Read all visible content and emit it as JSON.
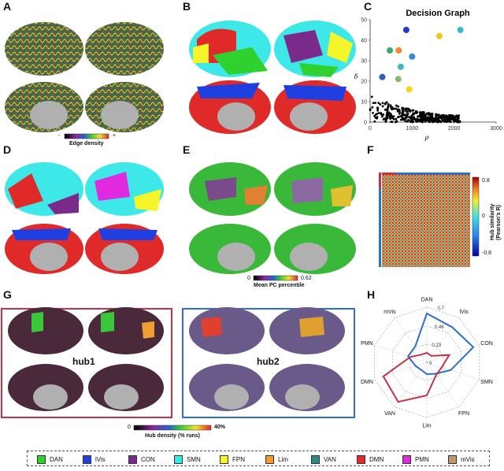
{
  "panels": {
    "A": "A",
    "B": "B",
    "C": "C",
    "D": "D",
    "E": "E",
    "F": "F",
    "G": "G",
    "H": "H"
  },
  "panelA": {
    "colorbar_label": "Edge density",
    "min_label": "-",
    "max_label": "+"
  },
  "panelE": {
    "colorbar_label": "Mean PC percentile",
    "min_label": "0",
    "max_label": "0.62"
  },
  "panelF": {
    "colorbar_label_1": "Hub similarity",
    "colorbar_label_2": "(Pearson's R)",
    "max_label": "0.8",
    "zero_label": "0",
    "min_label": "-0.8"
  },
  "panelG": {
    "hub1_label": "hub1",
    "hub2_label": "hub2",
    "colorbar_label": "Hub density (% runs)",
    "min_label": "0",
    "max_label": "40%",
    "hub1_color": "#c0334a",
    "hub2_color": "#2a6fc9"
  },
  "chart_data": [
    {
      "type": "scatter",
      "title": "Decision Graph",
      "xlabel": "ρ",
      "ylabel": "δ",
      "xlim": [
        0,
        3000
      ],
      "ylim": [
        0,
        50
      ],
      "xticks": [
        "0",
        "1000",
        "2000",
        "3000"
      ],
      "yticks": [
        "0",
        "10",
        "20",
        "30",
        "40",
        "50"
      ],
      "highlighted_points": [
        {
          "x": 860,
          "y": 45,
          "color": "#1f3fbf"
        },
        {
          "x": 1650,
          "y": 42,
          "color": "#f5c518"
        },
        {
          "x": 2150,
          "y": 45,
          "color": "#3fb8c8"
        },
        {
          "x": 470,
          "y": 35,
          "color": "#3fa86a"
        },
        {
          "x": 680,
          "y": 35,
          "color": "#f08a2a"
        },
        {
          "x": 730,
          "y": 27,
          "color": "#3fb8c8"
        },
        {
          "x": 1000,
          "y": 32,
          "color": "#3a8ad8"
        },
        {
          "x": 670,
          "y": 21,
          "color": "#8ab870"
        },
        {
          "x": 290,
          "y": 22,
          "color": "#2a5fbf"
        },
        {
          "x": 930,
          "y": 16,
          "color": "#f5d518"
        }
      ],
      "background_cluster": {
        "x_range": [
          0,
          2150
        ],
        "y_range": [
          0,
          13
        ],
        "color": "#000000"
      }
    },
    {
      "type": "radar",
      "axes": [
        "DAN",
        "lVis",
        "CON",
        "SMN",
        "FPN",
        "Lim",
        "VAN",
        "DMN",
        "PMN",
        "mVis"
      ],
      "rings": [
        "0",
        "0.23",
        "0.46",
        "0.7"
      ],
      "rmax": 0.7,
      "series": [
        {
          "color": "#2a6fc9",
          "values": [
            0.62,
            0.55,
            0.62,
            0.32,
            0.18,
            0.15,
            0.12,
            0.15,
            0.25,
            0.25
          ]
        },
        {
          "color": "#c0334a",
          "values": [
            0.12,
            0.1,
            0.3,
            0.2,
            0.2,
            0.42,
            0.62,
            0.58,
            0.22,
            0.12
          ]
        }
      ]
    }
  ],
  "legend": [
    {
      "label": "DAN",
      "color": "#2fd12f"
    },
    {
      "label": "lVis",
      "color": "#1f3fe0"
    },
    {
      "label": "CON",
      "color": "#7a2a8a"
    },
    {
      "label": "SMN",
      "color": "#3fe8e8"
    },
    {
      "label": "FPN",
      "color": "#f5f52a"
    },
    {
      "label": "Lim",
      "color": "#f59a2a"
    },
    {
      "label": "VAN",
      "color": "#2a8a8a"
    },
    {
      "label": "DMN",
      "color": "#e02a2a"
    },
    {
      "label": "PMN",
      "color": "#e02ae0"
    },
    {
      "label": "mVis",
      "color": "#c09a6a"
    }
  ]
}
